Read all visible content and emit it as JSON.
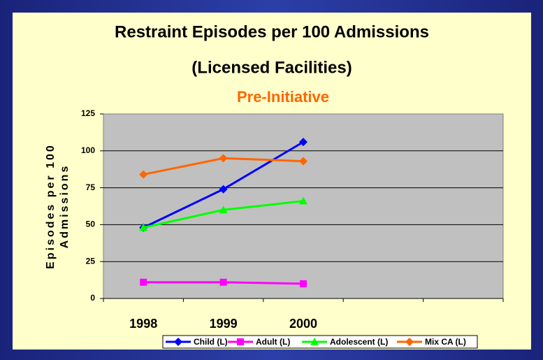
{
  "chart_data": {
    "type": "line",
    "title": [
      "Restraint Episodes per 100 Admissions",
      "(Licensed Facilities)"
    ],
    "subtitle": "Pre-Initiative",
    "y_label": [
      "Episodes per 100",
      "Admissions"
    ],
    "categories": [
      "1998",
      "1999",
      "2000",
      null,
      null
    ],
    "series": [
      {
        "name": "Child (L)",
        "color": "#0000ff",
        "marker": "diamond",
        "values": [
          48,
          74,
          106,
          null,
          null
        ]
      },
      {
        "name": "Adult (L)",
        "color": "#ff00ff",
        "marker": "square",
        "values": [
          11,
          11,
          10,
          null,
          null
        ]
      },
      {
        "name": "Adolescent (L)",
        "color": "#00ff00",
        "marker": "triangle",
        "values": [
          48,
          60,
          66,
          null,
          null
        ]
      },
      {
        "name": "Mix CA (L)",
        "color": "#ff6600",
        "marker": "diamond",
        "values": [
          84,
          95,
          93,
          null,
          null
        ]
      }
    ],
    "ylim": [
      0,
      125
    ],
    "yticks": [
      0,
      25,
      50,
      75,
      100,
      125
    ],
    "grid": true,
    "legend": "bottom"
  }
}
